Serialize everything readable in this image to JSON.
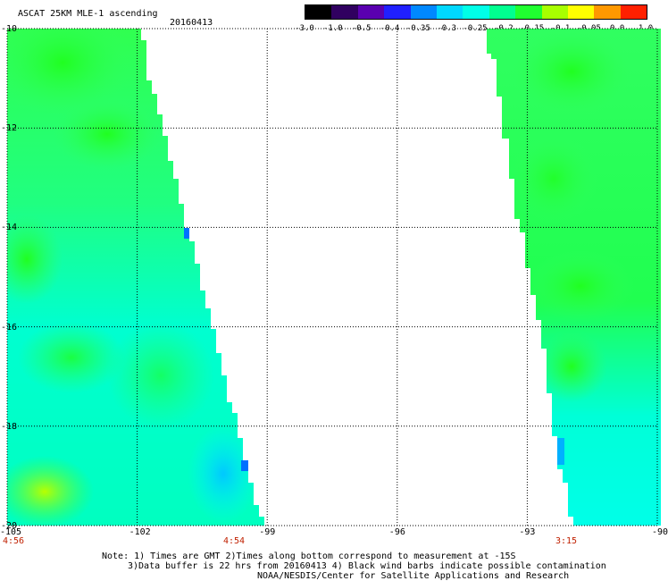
{
  "header": {
    "title": "ASCAT 25KM MLE-1 ascending",
    "date": "20160413"
  },
  "colorbar": {
    "labels": [
      "-3.0",
      "-1.0",
      "-0.5",
      "-0.4",
      "-0.35",
      "-0.3",
      "-0.25",
      "-0.2",
      "-0.15",
      "-0.1",
      "-0.05",
      "0.0",
      "1.0"
    ],
    "colors": [
      "#000000",
      "#3a0060",
      "#6a00c0",
      "#2020ff",
      "#0090ff",
      "#00d8ff",
      "#00ffe0",
      "#00ff90",
      "#20ff20",
      "#a0ff00",
      "#ffff00",
      "#ffa000",
      "#ff2000"
    ]
  },
  "map": {
    "lon_labels": [
      "-105",
      "-102",
      "-99",
      "-96",
      "-93",
      "-90"
    ],
    "lat_labels": [
      "-10",
      "-12",
      "-14",
      "-16",
      "-18",
      "-20"
    ],
    "lon_range": [
      -105,
      -90
    ],
    "lat_range": [
      -10,
      -20
    ],
    "time_labels": [
      "4:56",
      "4:54",
      "3:15"
    ]
  },
  "footer": {
    "line1": "Note: 1) Times are GMT 2)Times along bottom correspond to measurement at -15S",
    "line2": "3)Data buffer is 22 hrs from 20160413 4) Black wind barbs indicate possible contamination",
    "line3": "NOAA/NESDIS/Center for Satellite Applications and Research"
  }
}
